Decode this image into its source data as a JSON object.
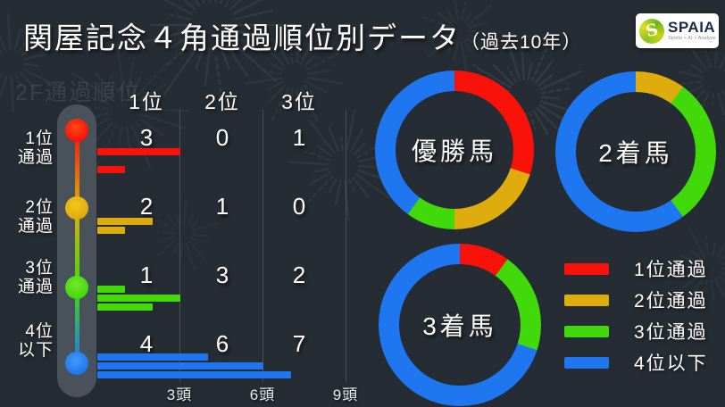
{
  "header": {
    "title": "関屋記念４角通過順位別データ",
    "title_suffix": "（過去10年）",
    "logo_name": "SPAIA",
    "logo_mark_letter": "S",
    "logo_subtitle": "Sports × AI × Analyze"
  },
  "palette": {
    "red": "#f8120a",
    "yellow": "#deac0d",
    "green": "#42d90a",
    "blue": "#1e77f0",
    "background": "#252c33",
    "rail": "#49525b"
  },
  "left_chart": {
    "ghost_label": "2F通過順位",
    "column_headers": [
      "1位",
      "2位",
      "3位"
    ],
    "axis_ticks": [
      "3頭",
      "6頭",
      "9頭"
    ],
    "rows": [
      {
        "label": [
          "1位",
          "通過"
        ],
        "color": "red",
        "values": [
          3,
          0,
          1
        ]
      },
      {
        "label": [
          "2位",
          "通過"
        ],
        "color": "yellow",
        "values": [
          2,
          1,
          0
        ]
      },
      {
        "label": [
          "3位",
          "通過"
        ],
        "color": "green",
        "values": [
          1,
          3,
          2
        ]
      },
      {
        "label": [
          "4位",
          "以下"
        ],
        "color": "blue",
        "values": [
          4,
          6,
          7
        ]
      }
    ]
  },
  "donuts": [
    {
      "label": "優勝馬",
      "values": [
        3,
        2,
        1,
        4
      ]
    },
    {
      "label": "2着馬",
      "values": [
        0,
        1,
        3,
        6
      ]
    },
    {
      "label": "3着馬",
      "values": [
        1,
        0,
        2,
        7
      ]
    }
  ],
  "legend": [
    {
      "color": "red",
      "label": "1位通過"
    },
    {
      "color": "yellow",
      "label": "2位通過"
    },
    {
      "color": "green",
      "label": "3位通過"
    },
    {
      "color": "blue",
      "label": "4位以下"
    }
  ],
  "chart_data": [
    {
      "type": "bar",
      "orientation": "horizontal",
      "title": "関屋記念４角通過順位別データ（過去10年）",
      "categories": [
        "1位通過",
        "2位通過",
        "3位通過",
        "4位以下"
      ],
      "series": [
        {
          "name": "1位",
          "values": [
            3,
            2,
            1,
            4
          ]
        },
        {
          "name": "2位",
          "values": [
            0,
            1,
            3,
            6
          ]
        },
        {
          "name": "3位",
          "values": [
            1,
            0,
            2,
            7
          ]
        }
      ],
      "xlabel": "",
      "ylabel": "",
      "xticks": [
        "3頭",
        "6頭",
        "9頭"
      ],
      "xlim": [
        0,
        9
      ],
      "grid": true,
      "legend_position": "bottom-right"
    },
    {
      "type": "pie",
      "title": "優勝馬",
      "labels": [
        "1位通過",
        "2位通過",
        "3位通過",
        "4位以下"
      ],
      "values": [
        3,
        2,
        1,
        4
      ]
    },
    {
      "type": "pie",
      "title": "2着馬",
      "labels": [
        "1位通過",
        "2位通過",
        "3位通過",
        "4位以下"
      ],
      "values": [
        0,
        1,
        3,
        6
      ]
    },
    {
      "type": "pie",
      "title": "3着馬",
      "labels": [
        "1位通過",
        "2位通過",
        "3位通過",
        "4位以下"
      ],
      "values": [
        1,
        0,
        2,
        7
      ]
    }
  ]
}
